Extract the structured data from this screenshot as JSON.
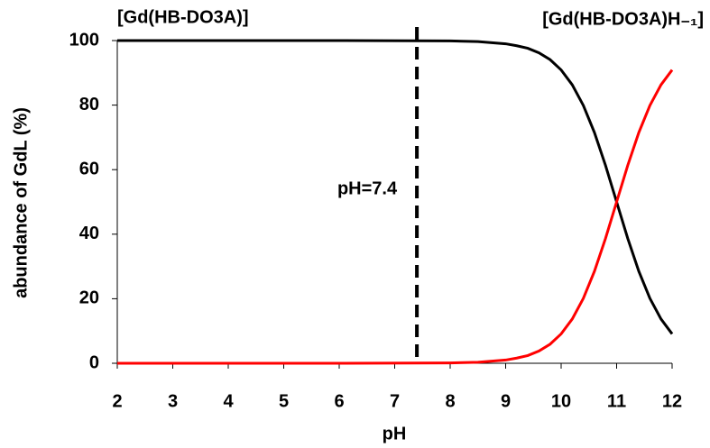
{
  "chart_data": {
    "type": "line",
    "x": [
      2,
      4,
      6,
      8,
      8.5,
      9,
      9.2,
      9.4,
      9.6,
      9.8,
      10,
      10.2,
      10.4,
      10.6,
      10.8,
      11,
      11.2,
      11.4,
      11.6,
      11.8,
      12
    ],
    "series": [
      {
        "name": "[Gd(HB-DO3A)]",
        "color": "#000000",
        "values": [
          100,
          100,
          100,
          99.9,
          99.7,
          99.0,
          98.4,
          97.6,
          96.2,
          94.1,
          90.9,
          86.3,
          79.9,
          71.5,
          61.3,
          50,
          38.7,
          28.5,
          20.1,
          13.7,
          9.1
        ]
      },
      {
        "name": "[Gd(HB-DO3A)H₋₁]",
        "color": "#ff0000",
        "values": [
          0,
          0,
          0,
          0.1,
          0.3,
          1.0,
          1.6,
          2.4,
          3.8,
          5.9,
          9.1,
          13.7,
          20.1,
          28.5,
          38.7,
          50,
          61.3,
          71.5,
          79.9,
          86.3,
          90.9
        ]
      }
    ],
    "xlabel": "pH",
    "ylabel": "abundance of GdL (%)",
    "xlim": [
      2,
      12
    ],
    "xticks": [
      2,
      3,
      4,
      5,
      6,
      7,
      8,
      9,
      10,
      11,
      12
    ],
    "ylim": [
      0,
      100
    ],
    "yticks": [
      0,
      20,
      40,
      60,
      80,
      100
    ],
    "vline": {
      "x": 7.4,
      "label": "pH=7.4"
    }
  }
}
